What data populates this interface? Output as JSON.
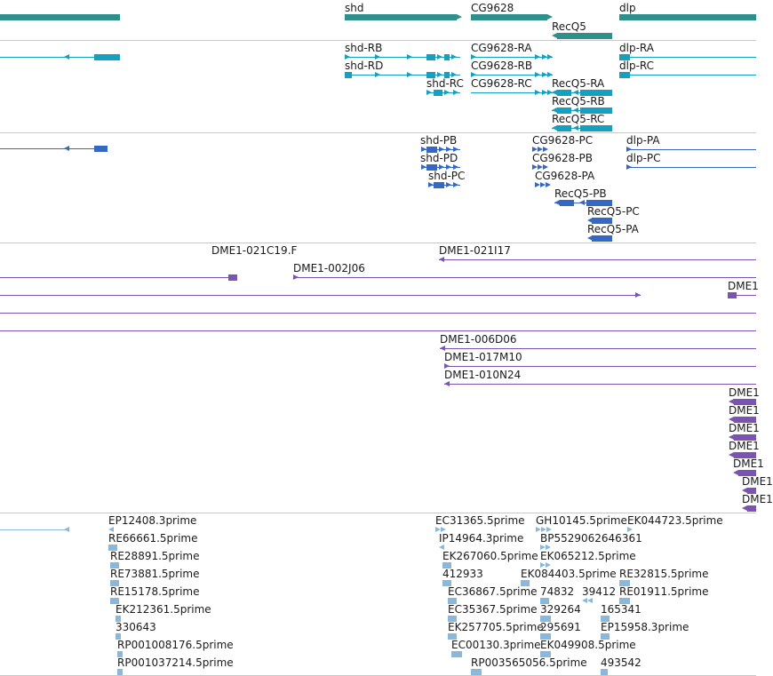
{
  "colors": {
    "gene": "#2f8f8a",
    "transcript": "#15a0c0",
    "protein": "#3468c4",
    "clone": "#7a54b0",
    "est": "#8ab8dc",
    "separator": "#c8c8c8",
    "text": "#1a1a1a"
  },
  "genes": [
    {
      "label": "",
      "strand": "none"
    },
    {
      "label": "shd",
      "strand": "plus"
    },
    {
      "label": "CG9628",
      "strand": "plus"
    },
    {
      "label": "RecQ5",
      "strand": "minus"
    },
    {
      "label": "dlp",
      "strand": "none"
    }
  ],
  "transcripts": [
    {
      "label": ""
    },
    {
      "label": "shd-RB"
    },
    {
      "label": "shd-RD"
    },
    {
      "label": "shd-RC"
    },
    {
      "label": "CG9628-RA"
    },
    {
      "label": "CG9628-RB"
    },
    {
      "label": "CG9628-RC"
    },
    {
      "label": "RecQ5-RA"
    },
    {
      "label": "RecQ5-RB"
    },
    {
      "label": "RecQ5-RC"
    },
    {
      "label": "dlp-RA"
    },
    {
      "label": "dlp-RC"
    }
  ],
  "proteins": [
    {
      "label": ""
    },
    {
      "label": "shd-PB"
    },
    {
      "label": "shd-PD"
    },
    {
      "label": "shd-PC"
    },
    {
      "label": "CG9628-PC"
    },
    {
      "label": "CG9628-PB"
    },
    {
      "label": "CG9628-PA"
    },
    {
      "label": "RecQ5-PB"
    },
    {
      "label": "RecQ5-PC"
    },
    {
      "label": "RecQ5-PA"
    },
    {
      "label": "dlp-PA"
    },
    {
      "label": "dlp-PC"
    }
  ],
  "clones": [
    {
      "label": "DME1-021C19.F"
    },
    {
      "label": ""
    },
    {
      "label": "DME1-002J06"
    },
    {
      "label": "DME1-021I17"
    },
    {
      "label": ""
    },
    {
      "label": ""
    },
    {
      "label": ""
    },
    {
      "label": "DME1"
    },
    {
      "label": "DME1-006D06"
    },
    {
      "label": "DME1-017M10"
    },
    {
      "label": "DME1-010N24"
    },
    {
      "label": "DME1"
    },
    {
      "label": "DME1"
    },
    {
      "label": "DME1"
    },
    {
      "label": "DME1"
    },
    {
      "label": "DME1"
    },
    {
      "label": "DME1"
    },
    {
      "label": "DME1"
    }
  ],
  "ests": [
    {
      "label": ""
    },
    {
      "label": "EP12408.3prime"
    },
    {
      "label": "RE66661.5prime"
    },
    {
      "label": "RE28891.5prime"
    },
    {
      "label": "RE73881.5prime"
    },
    {
      "label": "RE15178.5prime"
    },
    {
      "label": "EK212361.5prime"
    },
    {
      "label": "330643"
    },
    {
      "label": "RP001008176.5prime"
    },
    {
      "label": "RP001037214.5prime"
    },
    {
      "label": "EC31365.5prime"
    },
    {
      "label": "IP14964.3prime"
    },
    {
      "label": "EK267060.5prime"
    },
    {
      "label": "412933"
    },
    {
      "label": "EC36867.5prime"
    },
    {
      "label": "EC35367.5prime"
    },
    {
      "label": "EK257705.5prime"
    },
    {
      "label": "EC00130.3prime"
    },
    {
      "label": "RP003565056.5prime"
    },
    {
      "label": "GH10145.5prime"
    },
    {
      "label": "BP5529062646361"
    },
    {
      "label": "EK065212.5prime"
    },
    {
      "label": "EK084403.5prime"
    },
    {
      "label": "74832"
    },
    {
      "label": "39412"
    },
    {
      "label": "329264"
    },
    {
      "label": "295691"
    },
    {
      "label": "EK049908.5prime"
    },
    {
      "label": "EK044723.5prime"
    },
    {
      "label": "RE32815.5prime"
    },
    {
      "label": "RE01911.5prime"
    },
    {
      "label": "165341"
    },
    {
      "label": "EP15958.3prime"
    },
    {
      "label": "493542"
    }
  ]
}
